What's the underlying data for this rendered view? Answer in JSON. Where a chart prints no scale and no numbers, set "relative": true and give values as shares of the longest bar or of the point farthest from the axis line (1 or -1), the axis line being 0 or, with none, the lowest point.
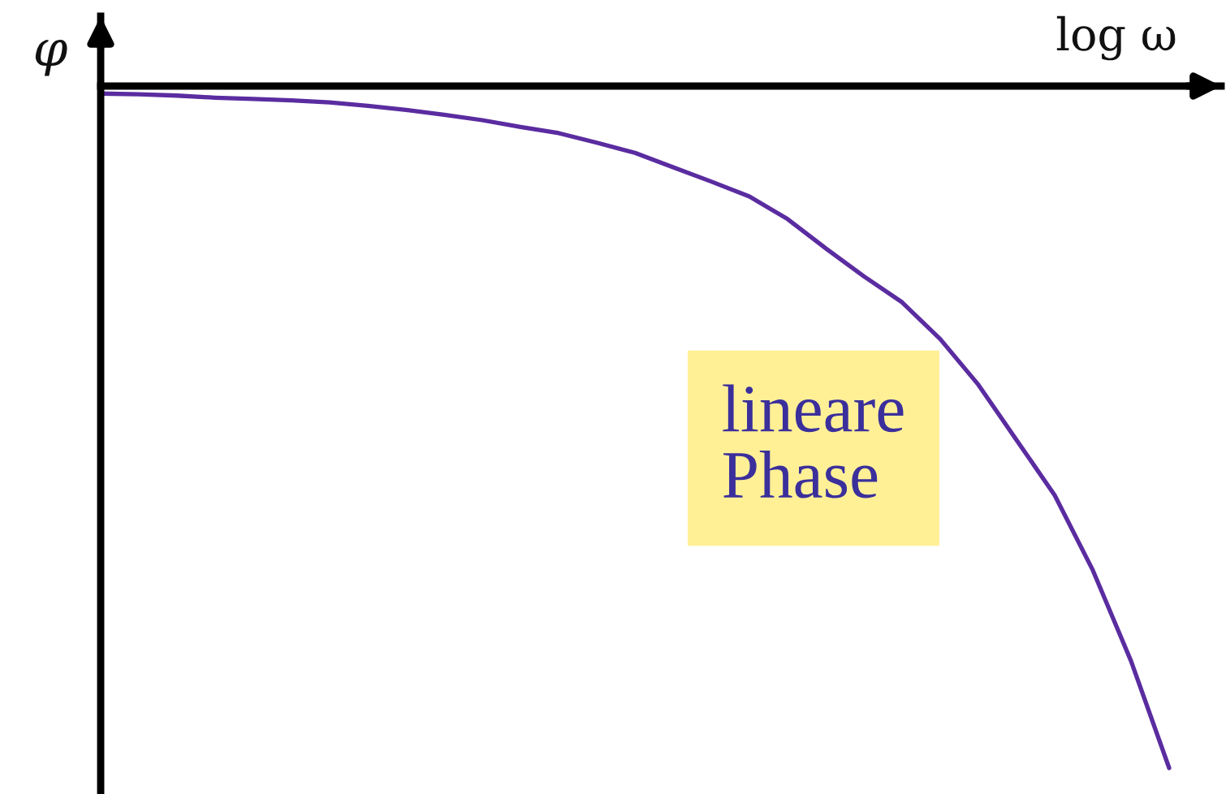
{
  "chart_data": {
    "type": "line",
    "relative": true,
    "xlabel": "log ω",
    "ylabel": "φ",
    "categories": [
      null,
      null,
      null,
      null,
      null,
      null,
      null,
      null,
      null,
      null,
      null,
      null,
      null,
      null,
      null,
      null,
      null,
      null,
      null,
      null,
      null,
      null,
      null,
      null,
      null,
      null,
      null,
      null,
      null
    ],
    "series": [
      {
        "color": "#5a2ca0",
        "values": [
          -0.011,
          -0.012,
          -0.014,
          -0.017,
          -0.019,
          -0.021,
          -0.024,
          -0.029,
          -0.035,
          -0.042,
          -0.05,
          -0.06,
          -0.069,
          -0.083,
          -0.098,
          -0.119,
          -0.14,
          -0.162,
          -0.195,
          -0.238,
          -0.279,
          -0.317,
          -0.371,
          -0.438,
          -0.519,
          -0.6,
          -0.71,
          -0.843,
          -1
        ]
      }
    ],
    "annotations": [
      "lineare\nPhase"
    ]
  }
}
